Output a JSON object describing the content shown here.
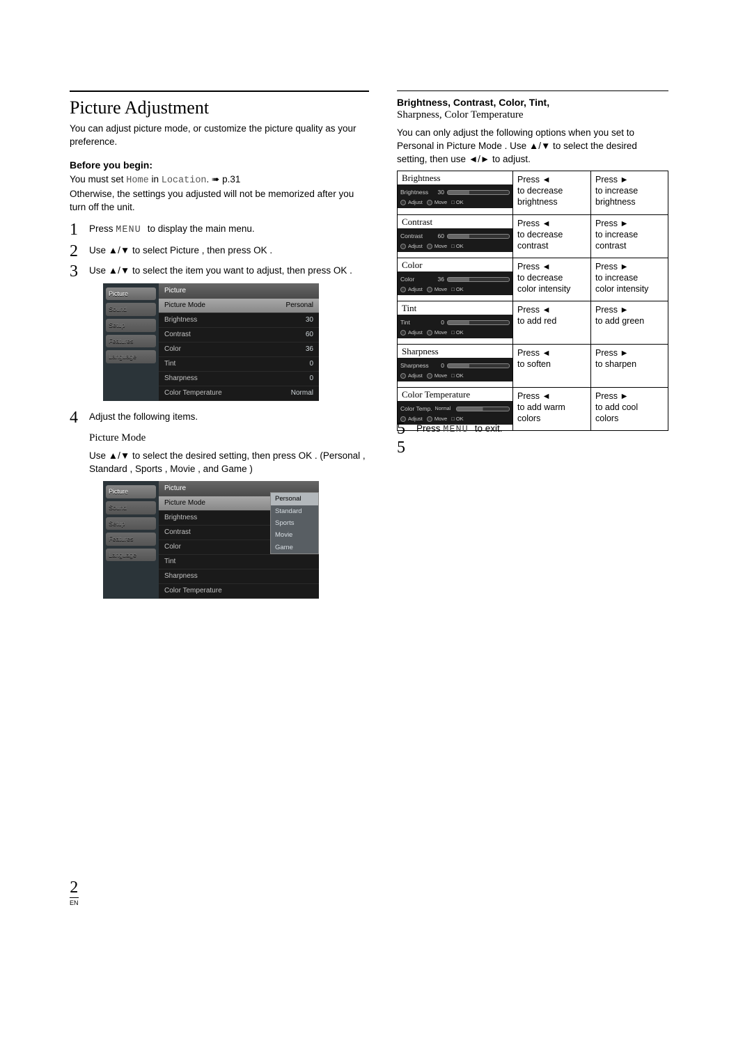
{
  "page": {
    "number": "2",
    "lang": "EN"
  },
  "left": {
    "title": "Picture Adjustment",
    "intro": "You can adjust picture mode, or customize the picture quality as your preference.",
    "before_label": "Before you begin:",
    "before_text_a": "You must set ",
    "before_home": "Home",
    "before_text_b": " in ",
    "before_location": "Location",
    "before_text_c": ". ➠ p.31",
    "before_text2": "Otherwise, the settings you adjusted will not be memorized after you turn off the unit.",
    "step1_a": "Press ",
    "step1_menu": "MENU ",
    "step1_b": "to display the main menu.",
    "step2": "Use ▲/▼ to select Picture , then press OK .",
    "step3": "Use ▲/▼ to select the item you want to adjust, then press OK .",
    "step4": "Adjust the following items.",
    "pm_heading": "Picture Mode",
    "pm_text": "Use ▲/▼ to select the desired setting, then press OK . (Personal , Standard , Sports , Movie , and Game )"
  },
  "osd": {
    "title": "Picture",
    "tabs": [
      "Picture",
      "Sound",
      "Setup",
      "Features",
      "Language"
    ],
    "rows": [
      {
        "label": "Picture Mode",
        "value": "Personal",
        "hl": true
      },
      {
        "label": "Brightness",
        "value": "30"
      },
      {
        "label": "Contrast",
        "value": "60"
      },
      {
        "label": "Color",
        "value": "36"
      },
      {
        "label": "Tint",
        "value": "0"
      },
      {
        "label": "Sharpness",
        "value": "0"
      },
      {
        "label": "Color Temperature",
        "value": "Normal"
      }
    ],
    "modes": [
      "Personal",
      "Standard",
      "Sports",
      "Movie",
      "Game"
    ]
  },
  "right": {
    "head_bold": "Brightness, Contrast, Color, Tint,",
    "head_sub": "Sharpness, Color Temperature",
    "lead": "You can only adjust the following options when you set to Personal in Picture Mode . Use ▲/▼ to select the desired setting, then use ◄/► to adjust.",
    "items": [
      {
        "name": "Brightness",
        "val": "30",
        "dec": "Press ◄\nto decrease\nbrightness",
        "inc": "Press ►\nto increase\nbrightness"
      },
      {
        "name": "Contrast",
        "val": "60",
        "dec": "Press ◄\nto decrease\ncontrast",
        "inc": "Press ►\nto increase\ncontrast"
      },
      {
        "name": "Color",
        "val": "36",
        "dec": "Press ◄\nto decrease\ncolor intensity",
        "inc": "Press ►\nto increase\ncolor intensity"
      },
      {
        "name": "Tint",
        "val": "0",
        "dec": "Press ◄\nto add red",
        "inc": "Press ►\nto add green"
      },
      {
        "name": "Sharpness",
        "val": "0",
        "dec": "Press ◄\nto soften",
        "inc": "Press ►\nto sharpen"
      },
      {
        "name": "Color Temperature",
        "val": "Normal",
        "dec": "Press ◄\nto add warm\ncolors",
        "inc": "Press ►\nto add cool\ncolors",
        "ct": true
      }
    ],
    "step5_a": "Press ",
    "step5_menu": "MENU ",
    "step5_b": "to exit.",
    "slider_ctrl_adjust": "Adjust",
    "slider_ctrl_move": "Move",
    "slider_ctrl_ok": "OK"
  },
  "colors": {
    "osd_bg": "#1a1a1a",
    "osd_side": "#2b3439",
    "osd_header": "#5a5a5a",
    "text": "#000000"
  }
}
